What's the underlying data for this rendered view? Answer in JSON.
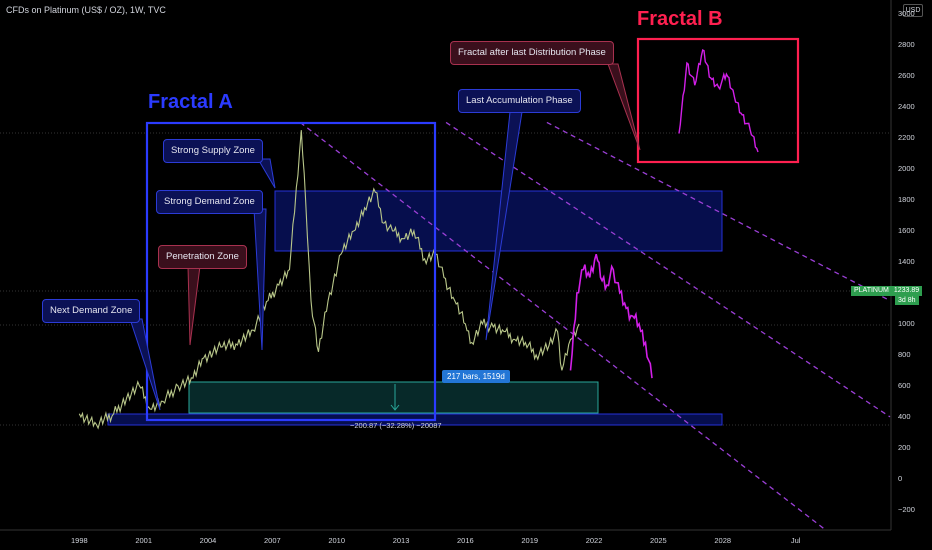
{
  "header": {
    "title": "CFDs on Platinum (US$ / OZ), 1W, TVC",
    "currency": "USD"
  },
  "price_label": {
    "symbol": "PLATINUM",
    "value": "1233.89",
    "countdown": "3d 8h"
  },
  "annotations": {
    "fractal_a": "Fractal A",
    "fractal_b": "Fractal B",
    "strong_supply": "Strong Supply Zone",
    "strong_demand": "Strong Demand Zone",
    "penetration": "Penetration Zone",
    "next_demand": "Next Demand Zone",
    "last_accumulation": "Last Accumulation Phase",
    "after_distribution": "Fractal after last Distribution Phase",
    "range_bars": "217 bars, 1519d",
    "range_change": "−200.87 (−32.28%) −20087"
  },
  "colors": {
    "background": "#000000",
    "price_line": "#b9c78a",
    "projection": "#d21fe8",
    "channel": "#9b3fd6",
    "zone_fill": "#0b1a8c",
    "zone_border": "#2531d8",
    "measure_fill": "#0a3a3a",
    "measure_border": "#2aa89a",
    "fractal_a_color": "#2b3bff",
    "fractal_b_color": "#ff2050",
    "fractal_b_box": "#ff2050",
    "price_tag": "#2e9e4f"
  },
  "chart_data": {
    "type": "line",
    "series": [
      {
        "x": [
          1997.7,
          1998.5,
          1999.3,
          1999.9,
          2000.5,
          2001.0,
          2001.6,
          2002.3,
          2003.0,
          2003.5,
          2004.3,
          2005.0,
          2005.8,
          2006.5,
          2007.0,
          2007.5,
          2008.05,
          2008.25,
          2008.5,
          2008.85,
          2009.3,
          2009.9,
          2010.5,
          2011.0,
          2011.5,
          2011.9,
          2012.3,
          2012.8,
          2013.3,
          2013.8,
          2014.3,
          2014.7,
          2015.2,
          2015.7,
          2016.0,
          2016.5,
          2017.0,
          2017.5,
          2018.0,
          2018.5,
          2019.0,
          2019.6,
          2020.0,
          2020.2,
          2020.6,
          2021.0
        ],
        "values": [
          420,
          350,
          420,
          520,
          600,
          450,
          500,
          600,
          650,
          780,
          850,
          870,
          960,
          1150,
          1250,
          1350,
          2250,
          1800,
          1150,
          820,
          1150,
          1450,
          1600,
          1750,
          1850,
          1650,
          1600,
          1550,
          1600,
          1420,
          1450,
          1300,
          1150,
          1000,
          880,
          1000,
          980,
          950,
          900,
          880,
          800,
          860,
          950,
          700,
          900,
          1000
        ]
      },
      {
        "name": "Fractal B projection",
        "x": [
          2020.6,
          2020.9,
          2021.2,
          2021.5,
          2021.8,
          2022.0,
          2022.3,
          2022.6,
          2022.9,
          2023.2,
          2023.5,
          2023.8,
          2024.1,
          2024.4
        ],
        "values": [
          700,
          1200,
          1350,
          1300,
          1450,
          1300,
          1250,
          1350,
          1200,
          1100,
          1050,
          1000,
          880,
          650
        ]
      }
    ],
    "x_ticks": [
      "1998",
      "2001",
      "2004",
      "2007",
      "2010",
      "2013",
      "2016",
      "2019",
      "2022",
      "2025",
      "2028",
      "Jul"
    ],
    "y_ticks": [
      "3000",
      "2800",
      "2600",
      "2400",
      "2200",
      "2000",
      "1800",
      "1600",
      "1400",
      "1200",
      "1000",
      "800",
      "600",
      "400",
      "200",
      "0",
      "−200"
    ],
    "xlim": [
      1994.0,
      2035.5
    ],
    "ylim": [
      -330,
      3090
    ],
    "grid": false,
    "legend": "none",
    "zones": [
      {
        "name": "Strong Demand Zone",
        "x": [
          2008.2,
          2030.5
        ],
        "y": [
          1500,
          1900
        ]
      },
      {
        "name": "Next Demand Zone",
        "x": [
          1999.7,
          2030.5
        ],
        "y": [
          340,
          400
        ]
      }
    ],
    "measure": {
      "x": [
        2003.8,
        2024.6
      ],
      "y": [
        415,
        620
      ]
    },
    "channel_lines": [
      {
        "from": [
          2008.0,
          2300
        ],
        "to": [
          2032.5,
          -330
        ]
      },
      {
        "from": [
          2014.8,
          2300
        ],
        "to": [
          2035.5,
          400
        ]
      },
      {
        "from": [
          2019.5,
          2300
        ],
        "to": [
          2035.5,
          1150
        ]
      }
    ],
    "fractal_b": [
      2400,
      2780,
      2660,
      2850,
      2700,
      2650,
      2720,
      2600,
      2500,
      2420,
      2300
    ]
  }
}
